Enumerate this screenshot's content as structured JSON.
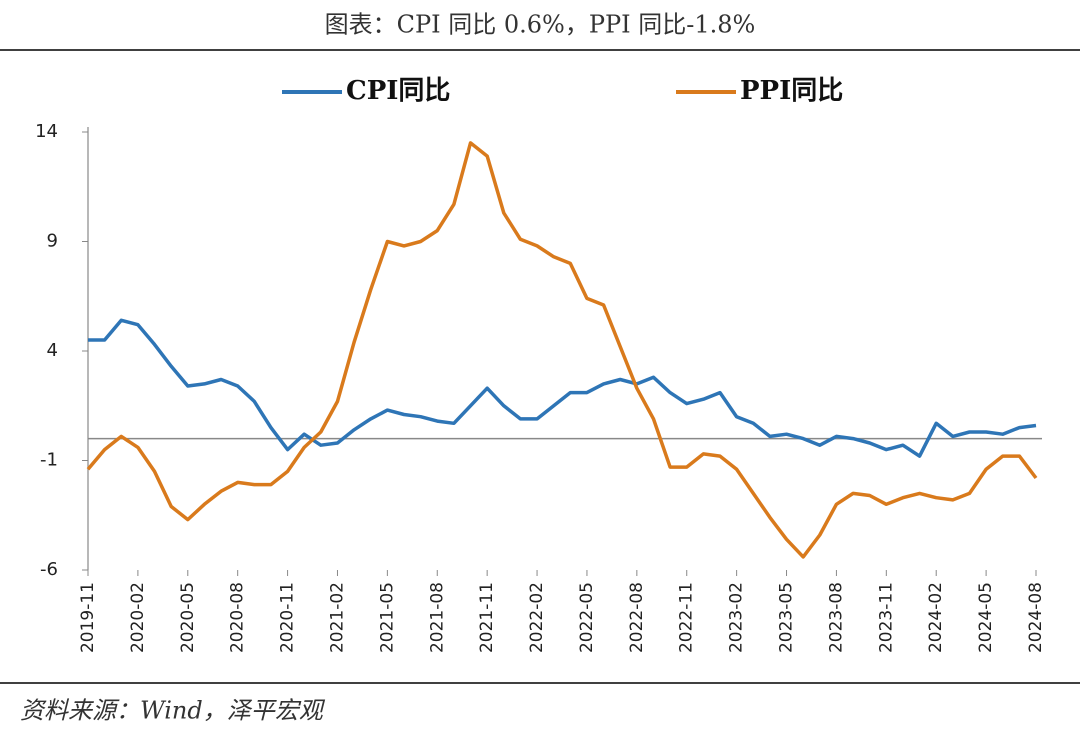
{
  "chart_data": {
    "type": "line",
    "title": "图表：CPI 同比 0.6%，PPI 同比-1.8%",
    "source": "资料来源：Wind，泽平宏观",
    "categories": [
      "2019-11",
      null,
      null,
      "2020-02",
      null,
      null,
      "2020-05",
      null,
      null,
      "2020-08",
      null,
      null,
      "2020-11",
      null,
      null,
      "2021-02",
      null,
      null,
      "2021-05",
      null,
      null,
      "2021-08",
      null,
      null,
      "2021-11",
      null,
      null,
      "2022-02",
      null,
      null,
      "2022-05",
      null,
      null,
      "2022-08",
      null,
      null,
      "2022-11",
      null,
      null,
      "2023-02",
      null,
      null,
      "2023-05",
      null,
      null,
      "2023-08",
      null,
      null,
      "2023-11",
      null,
      null,
      "2024-02",
      null,
      null,
      "2024-05",
      null,
      null,
      "2024-08"
    ],
    "series": [
      {
        "name": "CPI同比",
        "color": "#2e75b6",
        "values": [
          4.5,
          4.5,
          5.4,
          5.2,
          4.3,
          3.3,
          2.4,
          2.5,
          2.7,
          2.4,
          1.7,
          0.5,
          -0.5,
          0.2,
          -0.3,
          -0.2,
          0.4,
          0.9,
          1.3,
          1.1,
          1.0,
          0.8,
          0.7,
          1.5,
          2.3,
          1.5,
          0.9,
          0.9,
          1.5,
          2.1,
          2.1,
          2.5,
          2.7,
          2.5,
          2.8,
          2.1,
          1.6,
          1.8,
          2.1,
          1.0,
          0.7,
          0.1,
          0.2,
          0.0,
          -0.3,
          0.1,
          0.0,
          -0.2,
          -0.5,
          -0.3,
          -0.8,
          0.7,
          0.1,
          0.3,
          0.3,
          0.2,
          0.5,
          0.6
        ]
      },
      {
        "name": "PPI同比",
        "color": "#d97a1c",
        "values": [
          -1.4,
          -0.5,
          0.1,
          -0.4,
          -1.5,
          -3.1,
          -3.7,
          -3.0,
          -2.4,
          -2.0,
          -2.1,
          -2.1,
          -1.5,
          -0.4,
          0.3,
          1.7,
          4.4,
          6.8,
          9.0,
          8.8,
          9.0,
          9.5,
          10.7,
          13.5,
          12.9,
          10.3,
          9.1,
          8.8,
          8.3,
          8.0,
          6.4,
          6.1,
          4.2,
          2.3,
          0.9,
          -1.3,
          -1.3,
          -0.7,
          -0.8,
          -1.4,
          -2.5,
          -3.6,
          -4.6,
          -5.4,
          -4.4,
          -3.0,
          -2.5,
          -2.6,
          -3.0,
          -2.7,
          -2.5,
          -2.7,
          -2.8,
          -2.5,
          -1.4,
          -0.8,
          -0.8,
          -1.8
        ]
      }
    ],
    "ylim": [
      -6,
      14
    ],
    "yticks": [
      -6,
      -1,
      4,
      9,
      14
    ]
  }
}
